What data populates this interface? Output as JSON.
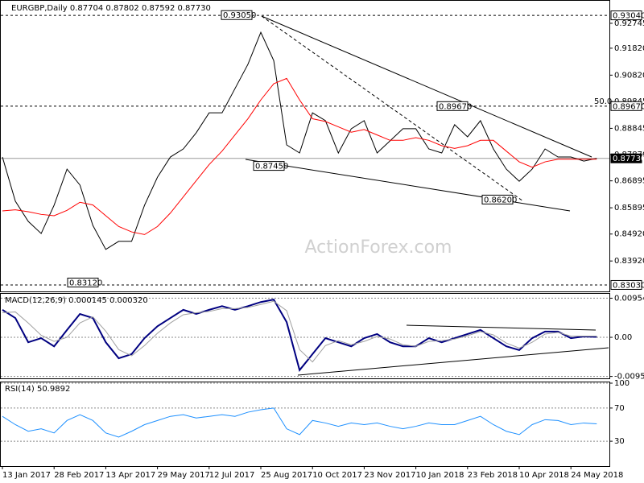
{
  "chart_data": [
    {
      "type": "line",
      "title": "EURGBP,Daily  0.87704 0.87802 0.87592 0.87730",
      "watermark": "ActionForex.com",
      "fib_label": "50.0",
      "categories": [
        "13 Jan 2017",
        null,
        null,
        null,
        "28 Feb 2017",
        null,
        null,
        null,
        "13 Apr 2017",
        null,
        null,
        null,
        "29 May 2017",
        null,
        null,
        null,
        "12 Jul 2017",
        null,
        null,
        null,
        "25 Aug 2017",
        null,
        null,
        null,
        "10 Oct 2017",
        null,
        null,
        null,
        "23 Nov 2017",
        null,
        null,
        null,
        "10 Jan 2018",
        null,
        null,
        null,
        "23 Feb 2018",
        null,
        null,
        null,
        "10 Apr 2018",
        null,
        null,
        null,
        "24 May 2018",
        null,
        null
      ],
      "series": [
        {
          "name": "Close",
          "color": "#000000",
          "values": [
            0.8778,
            0.8614,
            0.8539,
            0.8494,
            0.8599,
            0.8733,
            0.8674,
            0.8524,
            0.8435,
            0.8465,
            0.8465,
            0.8599,
            0.8703,
            0.8778,
            0.8808,
            0.8868,
            0.8942,
            0.8942,
            0.9032,
            0.9122,
            0.9241,
            0.9136,
            0.8823,
            0.8793,
            0.8942,
            0.8913,
            0.8793,
            0.8883,
            0.8913,
            0.8793,
            0.8838,
            0.8883,
            0.8883,
            0.8808,
            0.8793,
            0.8898,
            0.8853,
            0.8913,
            0.8808,
            0.8733,
            0.8688,
            0.8733,
            0.8808,
            0.8778,
            0.8778,
            0.8763,
            0.8773
          ]
        },
        {
          "name": "MA",
          "color": "#ff0000",
          "values": [
            0.8578,
            0.8582,
            0.8575,
            0.8565,
            0.856,
            0.858,
            0.861,
            0.86,
            0.856,
            0.852,
            0.85,
            0.849,
            0.852,
            0.857,
            0.863,
            0.869,
            0.875,
            0.88,
            0.886,
            0.892,
            0.899,
            0.905,
            0.907,
            0.899,
            0.892,
            0.891,
            0.889,
            0.887,
            0.888,
            0.886,
            0.884,
            0.884,
            0.885,
            0.884,
            0.882,
            0.881,
            0.882,
            0.884,
            0.884,
            0.88,
            0.876,
            0.874,
            0.876,
            0.877,
            0.877,
            0.877,
            0.877
          ]
        }
      ],
      "ylim": [
        0.8279,
        0.9355
      ],
      "yticks": [
        {
          "value": 0.92745,
          "label": "0.92745"
        },
        {
          "value": 0.9182,
          "label": "0.91820"
        },
        {
          "value": 0.9082,
          "label": "0.90820"
        },
        {
          "value": 0.89845,
          "label": "0.89845"
        },
        {
          "value": 0.88845,
          "label": "0.88845"
        },
        {
          "value": 0.8787,
          "label": "0.87870"
        },
        {
          "value": 0.86895,
          "label": "0.86895"
        },
        {
          "value": 0.85895,
          "label": "0.85895"
        },
        {
          "value": 0.8492,
          "label": "0.84920"
        },
        {
          "value": 0.8392,
          "label": "0.83920"
        }
      ],
      "levels": [
        {
          "value": 0.9304,
          "label": "0.93040"
        },
        {
          "value": 0.8967,
          "label": "0.89670"
        },
        {
          "value": 0.8303,
          "label": "0.83030"
        }
      ],
      "last_price": {
        "value": 0.8773,
        "label": "0.87730"
      },
      "annotations": [
        {
          "value": 0.9305,
          "label": "0.93050"
        },
        {
          "value": 0.8967,
          "label": "0.89670"
        },
        {
          "value": 0.8745,
          "label": "0.87450"
        },
        {
          "value": 0.862,
          "label": "0.86200"
        },
        {
          "value": 0.8312,
          "label": "0.83120"
        }
      ]
    },
    {
      "type": "line",
      "title": "MACD(12,26,9) 0.000145 0.000320",
      "series": [
        {
          "name": "MACD",
          "color": "#000080",
          "values": [
            0.0067,
            0.0047,
            -0.0012,
            -0.0002,
            -0.0022,
            0.0018,
            0.0057,
            0.0047,
            -0.0012,
            -0.0051,
            -0.0041,
            -0.0002,
            0.0027,
            0.0047,
            0.0067,
            0.0057,
            0.0067,
            0.0076,
            0.0067,
            0.0076,
            0.0086,
            0.0092,
            0.0037,
            -0.008,
            -0.0041,
            -0.0002,
            -0.0012,
            -0.0022,
            -0.0002,
            0.0008,
            -0.0012,
            -0.0022,
            -0.0022,
            -0.0002,
            -0.0012,
            -0.0002,
            0.0008,
            0.0018,
            -0.0002,
            -0.0022,
            -0.0031,
            -0.0002,
            0.0014,
            0.0014,
            -0.0002,
            0.0002,
            0.0001
          ]
        },
        {
          "name": "Signal",
          "color": "#a0a0a0",
          "values": [
            0.006,
            0.0062,
            0.0035,
            0.0005,
            -0.001,
            0.0,
            0.0035,
            0.005,
            0.0015,
            -0.003,
            -0.0045,
            -0.002,
            0.001,
            0.0035,
            0.0055,
            0.006,
            0.0063,
            0.007,
            0.007,
            0.0073,
            0.008,
            0.0088,
            0.0065,
            -0.003,
            -0.006,
            -0.002,
            -0.0008,
            -0.0018,
            -0.001,
            0.0002,
            -0.0004,
            -0.0018,
            -0.0022,
            -0.001,
            -0.0008,
            -0.0004,
            0.0004,
            0.0014,
            0.0006,
            -0.0014,
            -0.0026,
            -0.0012,
            0.0008,
            0.0012,
            0.0003,
            0.0003,
            0.0003
          ]
        }
      ],
      "ylim": [
        -0.01,
        0.0108
      ],
      "yticks": [
        0.00954,
        {
          "value": 0,
          "label": "0.00"
        },
        -0.00953
      ]
    },
    {
      "type": "line",
      "title": "RSI(14) 50.9892",
      "series": [
        {
          "name": "RSI",
          "color": "#1e90ff",
          "values": [
            60,
            50,
            42,
            45,
            40,
            55,
            62,
            55,
            40,
            35,
            42,
            50,
            55,
            60,
            62,
            58,
            60,
            62,
            60,
            65,
            68,
            70,
            45,
            38,
            55,
            52,
            48,
            52,
            50,
            52,
            48,
            45,
            48,
            52,
            50,
            50,
            55,
            60,
            50,
            42,
            38,
            50,
            56,
            55,
            50,
            52,
            51
          ]
        }
      ],
      "ylim": [
        0,
        100
      ],
      "yticks": [
        30,
        70,
        100
      ]
    }
  ]
}
